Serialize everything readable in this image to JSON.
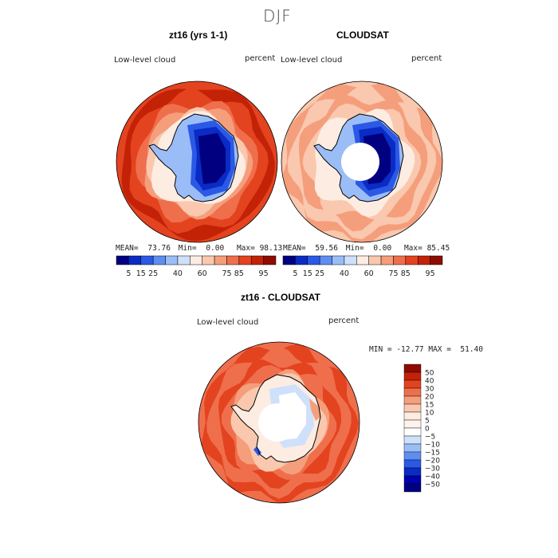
{
  "season": "DJF",
  "palette": [
    "#000080",
    "#0a2bc4",
    "#2b59e6",
    "#5f8ef2",
    "#9bbdf7",
    "#cfe0fb",
    "#fdece2",
    "#f9c8ae",
    "#f59e7c",
    "#ef6f4c",
    "#e4431f",
    "#c42206",
    "#8f0b00"
  ],
  "chart_data": [
    {
      "type": "heatmap",
      "title": "zt16 (yrs 1-1)",
      "field_label": "Low-level cloud",
      "unit_label": "percent",
      "mean": "73.76",
      "min": "0.00",
      "max": "98.13",
      "mean_label": "MEAN=",
      "min_label": "Min=",
      "max_label": "Max=",
      "legend_ticks": [
        "5",
        "15",
        "25",
        "40",
        "60",
        "75",
        "85",
        "95"
      ]
    },
    {
      "type": "heatmap",
      "title": "CLOUDSAT",
      "field_label": "Low-level cloud",
      "unit_label": "percent",
      "mean": "59.56",
      "min": "0.00",
      "max": "85.45",
      "mean_label": "MEAN=",
      "min_label": "Min=",
      "max_label": "Max=",
      "legend_ticks": [
        "5",
        "15",
        "25",
        "40",
        "60",
        "75",
        "85",
        "95"
      ]
    },
    {
      "type": "heatmap",
      "title": "zt16 - CLOUDSAT",
      "field_label": "Low-level cloud",
      "unit_label": "percent",
      "minmax_text": "MIN = -12.77 MAX =  51.40",
      "legend_ticks": [
        "50",
        "40",
        "30",
        "20",
        "15",
        "10",
        "5",
        "0",
        "−5",
        "−10",
        "−15",
        "−20",
        "−30",
        "−40",
        "−50"
      ]
    }
  ]
}
